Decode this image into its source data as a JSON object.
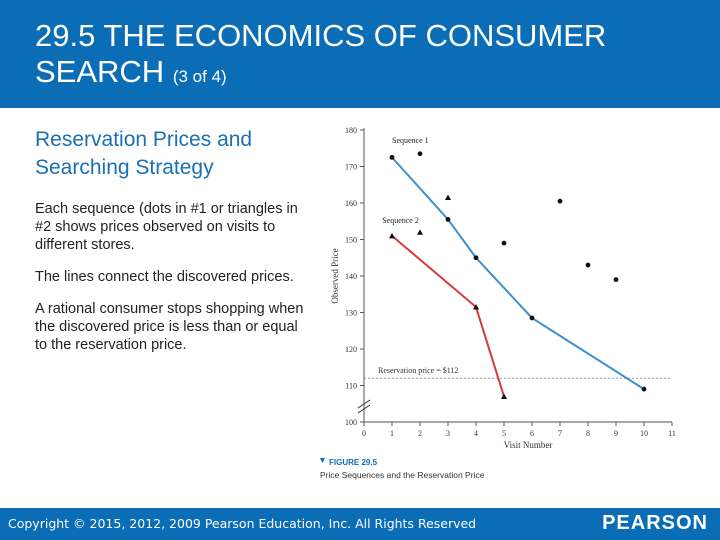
{
  "slide": {
    "title_main": "29.5 THE ECONOMICS OF CONSUMER SEARCH",
    "title_suffix": "(3 of 4)",
    "heading": "Reservation Prices and Searching Strategy",
    "paragraphs": [
      "Each sequence (dots in #1 or triangles in #2 shows prices observed on visits to different stores.",
      "The lines connect the discovered prices.",
      "A rational consumer stops shopping when the discovered price is less than or equal to the reservation price."
    ]
  },
  "figure": {
    "label": "FIGURE 29.5",
    "caption": "Price Sequences and the Reservation Price"
  },
  "footer": {
    "copyright": "Copyright © 2015, 2012, 2009 Pearson Education, Inc. All Rights Reserved",
    "logo": "PEARSON"
  },
  "colors": {
    "brand_blue": "#0b6db6",
    "seq1_line": "#3d8fd1",
    "seq2_line": "#d63a3a"
  },
  "chart_data": {
    "type": "line",
    "xlabel": "Visit Number",
    "ylabel": "Observed Price",
    "xlim": [
      0,
      11
    ],
    "ylim": [
      100,
      180
    ],
    "axis_break": true,
    "x_ticks": [
      0,
      1,
      2,
      3,
      4,
      5,
      6,
      7,
      8,
      9,
      10,
      11
    ],
    "y_ticks": [
      100,
      110,
      120,
      130,
      140,
      150,
      160,
      170,
      180
    ],
    "reservation_price": {
      "value": 112,
      "label": "Reservation price = $112"
    },
    "series": [
      {
        "name": "Sequence 1",
        "marker": "dot",
        "points": [
          [
            1,
            172.5
          ],
          [
            2,
            173.5
          ],
          [
            3,
            155.5
          ],
          [
            4,
            145
          ],
          [
            5,
            149
          ],
          [
            6,
            128.5
          ],
          [
            7,
            160.5
          ],
          [
            8,
            143
          ],
          [
            9,
            139
          ],
          [
            10,
            109
          ]
        ],
        "path": [
          [
            1,
            172.5
          ],
          [
            3,
            155.5
          ],
          [
            4,
            145
          ],
          [
            6,
            128.5
          ],
          [
            10,
            109
          ]
        ]
      },
      {
        "name": "Sequence 2",
        "marker": "triangle",
        "points": [
          [
            1,
            151
          ],
          [
            2,
            152
          ],
          [
            3,
            161.5
          ],
          [
            4,
            131.5
          ],
          [
            5,
            107
          ]
        ],
        "path": [
          [
            1,
            151
          ],
          [
            4,
            131.5
          ],
          [
            5,
            107
          ]
        ]
      }
    ]
  }
}
